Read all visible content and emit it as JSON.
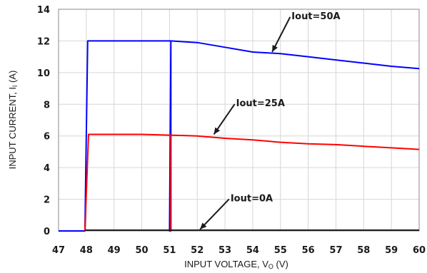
{
  "chart_data": {
    "type": "line",
    "title": "",
    "xlabel": "INPUT VOLTAGE, V",
    "xlabel_subscript": "O",
    "xlabel_unit": " (V)",
    "ylabel": "INPUT CURRENT, I",
    "ylabel_subscript": "I",
    "ylabel_unit": " (A)",
    "xlim": [
      47,
      60
    ],
    "ylim": [
      0,
      14
    ],
    "xticks": [
      47,
      48,
      49,
      50,
      51,
      52,
      53,
      54,
      55,
      56,
      57,
      58,
      59,
      60
    ],
    "yticks": [
      0,
      2,
      4,
      6,
      8,
      10,
      12,
      14
    ],
    "grid": true,
    "series": [
      {
        "name": "Iout=50A",
        "color": "#0000ff",
        "points": [
          [
            47.0,
            0.0
          ],
          [
            47.95,
            0.0
          ],
          [
            48.05,
            12.0
          ],
          [
            49.0,
            12.0
          ],
          [
            50.0,
            12.0
          ],
          [
            51.0,
            12.0
          ],
          [
            51.05,
            12.0
          ],
          [
            51.05,
            0.0
          ],
          [
            51.0,
            0.0
          ],
          [
            51.05,
            12.0
          ],
          [
            52.0,
            11.9
          ],
          [
            53.0,
            11.6
          ],
          [
            54.0,
            11.3
          ],
          [
            55.0,
            11.2
          ],
          [
            56.0,
            11.0
          ],
          [
            57.0,
            10.8
          ],
          [
            58.0,
            10.6
          ],
          [
            59.0,
            10.4
          ],
          [
            60.0,
            10.25
          ]
        ]
      },
      {
        "name": "Iout=25A",
        "color": "#ff0000",
        "points": [
          [
            47.95,
            0.0
          ],
          [
            48.08,
            6.1
          ],
          [
            49.0,
            6.1
          ],
          [
            50.0,
            6.1
          ],
          [
            51.0,
            6.05
          ],
          [
            51.05,
            6.05
          ],
          [
            51.05,
            0.0
          ],
          [
            51.05,
            6.05
          ],
          [
            52.0,
            6.0
          ],
          [
            53.0,
            5.85
          ],
          [
            54.0,
            5.75
          ],
          [
            55.0,
            5.6
          ],
          [
            56.0,
            5.5
          ],
          [
            57.0,
            5.45
          ],
          [
            58.0,
            5.35
          ],
          [
            59.0,
            5.25
          ],
          [
            60.0,
            5.15
          ]
        ]
      },
      {
        "name": "Iout=0A",
        "color": "#1a1a1a",
        "points": [
          [
            47.95,
            0.05
          ],
          [
            60.0,
            0.05
          ]
        ]
      }
    ],
    "annotations": [
      {
        "text": "Iout=50A",
        "x": 55.4,
        "y": 13.6,
        "arrow_to": [
          54.7,
          11.3
        ]
      },
      {
        "text": "Iout=25A",
        "x": 53.4,
        "y": 8.1,
        "arrow_to": [
          52.6,
          6.1
        ]
      },
      {
        "text": "Iout=0A",
        "x": 53.2,
        "y": 2.1,
        "arrow_to": [
          52.1,
          0.1
        ]
      }
    ]
  }
}
